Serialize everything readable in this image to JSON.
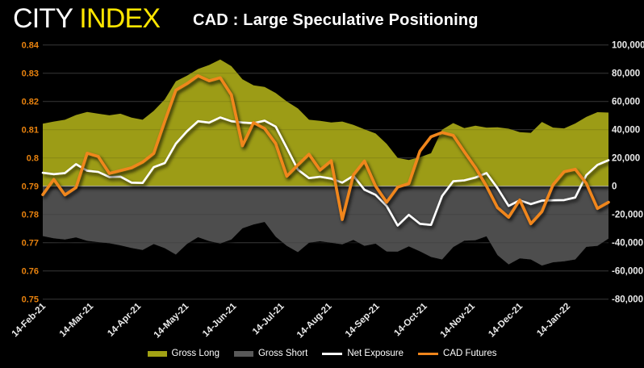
{
  "header": {
    "logo_primary": "CITY",
    "logo_secondary": "INDEX",
    "title": "CAD : Large Speculative Positioning"
  },
  "chart_data": {
    "type": "combo",
    "title": "CAD : Large Speculative Positioning",
    "x_tick_labels": [
      "14-Feb-21",
      "14-Mar-21",
      "14-Apr-21",
      "14-May-21",
      "14-Jun-21",
      "14-Jul-21",
      "14-Aug-21",
      "14-Sep-21",
      "14-Oct-21",
      "14-Nov-21",
      "14-Dec-21",
      "14-Jan-22"
    ],
    "left_axis": {
      "min": 0.75,
      "max": 0.84,
      "tick_labels": [
        "0.84",
        "0.83",
        "0.82",
        "0.81",
        "0.8",
        "0.79",
        "0.78",
        "0.77",
        "0.76",
        "0.75"
      ],
      "label_color": "#e8820e"
    },
    "right_axis": {
      "min": -80000,
      "max": 100000,
      "tick_labels": [
        "100,000",
        "80,000",
        "60,000",
        "40,000",
        "20,000",
        "0",
        "-20,000",
        "-40,000",
        "-60,000",
        "-80,000"
      ],
      "label_color": "#eaeaea"
    },
    "grid": true,
    "legend_position": "bottom",
    "series": [
      {
        "name": "Gross Long",
        "type": "area",
        "axis": "right",
        "color": "#9c9c13",
        "values": [
          44300,
          45800,
          47000,
          50400,
          52500,
          51300,
          50200,
          51300,
          48500,
          47000,
          53300,
          61500,
          74300,
          78300,
          83000,
          85800,
          89700,
          85000,
          75700,
          71400,
          70300,
          66000,
          60000,
          55000,
          47000,
          46300,
          45100,
          45800,
          43400,
          40300,
          37300,
          30000,
          20000,
          18500,
          20500,
          23300,
          40000,
          44700,
          41100,
          42800,
          41500,
          41700,
          40700,
          38300,
          37800,
          45500,
          41500,
          40900,
          44400,
          49000,
          52400,
          52100
        ]
      },
      {
        "name": "Gross Short",
        "type": "area",
        "axis": "right",
        "color": "#4d4d4d",
        "values": [
          -35300,
          -36900,
          -37700,
          -36200,
          -38700,
          -39600,
          -40400,
          -41900,
          -43700,
          -45200,
          -41000,
          -43900,
          -48400,
          -40900,
          -36100,
          -38900,
          -40600,
          -37800,
          -29800,
          -27100,
          -25300,
          -35700,
          -42200,
          -46700,
          -40000,
          -39000,
          -40000,
          -41200,
          -38000,
          -42200,
          -40700,
          -46200,
          -46300,
          -42600,
          -46100,
          -50100,
          -51900,
          -43100,
          -38600,
          -38200,
          -35500,
          -48800,
          -55400,
          -51100,
          -51900,
          -56200,
          -53900,
          -53200,
          -51900,
          -43000,
          -42200,
          -37100
        ]
      },
      {
        "name": "Net Exposure",
        "type": "line",
        "axis": "right",
        "color": "#ffffff",
        "width": 2.6,
        "values": [
          9500,
          8500,
          9300,
          15600,
          10900,
          10100,
          6500,
          6800,
          2500,
          2300,
          13500,
          16400,
          30100,
          38900,
          46000,
          45000,
          48700,
          46000,
          45100,
          44600,
          46400,
          42200,
          27000,
          11700,
          5700,
          6700,
          5400,
          2500,
          7400,
          -2500,
          -6100,
          -14000,
          -27900,
          -20300,
          -26600,
          -27400,
          -7000,
          3500,
          4100,
          6100,
          9300,
          -1400,
          -14000,
          -10000,
          -12700,
          -10200,
          -10000,
          -9800,
          -8000,
          7800,
          15100,
          18400
        ]
      },
      {
        "name": "CAD Futures",
        "type": "line",
        "axis": "left",
        "color": "#f0861c",
        "width": 3.6,
        "values": [
          0.787,
          0.7924,
          0.7869,
          0.7895,
          0.8017,
          0.8005,
          0.7945,
          0.7955,
          0.7965,
          0.7985,
          0.8016,
          0.813,
          0.824,
          0.8263,
          0.8291,
          0.8273,
          0.8284,
          0.8223,
          0.8043,
          0.8125,
          0.8104,
          0.8051,
          0.7935,
          0.7975,
          0.8013,
          0.7957,
          0.799,
          0.7782,
          0.794,
          0.7989,
          0.79,
          0.7843,
          0.7897,
          0.7909,
          0.8024,
          0.8075,
          0.809,
          0.808,
          0.8022,
          0.7966,
          0.79,
          0.7824,
          0.779,
          0.7851,
          0.7767,
          0.781,
          0.7905,
          0.7951,
          0.796,
          0.791,
          0.7821,
          0.7843
        ]
      }
    ]
  },
  "legend": {
    "items": [
      {
        "label": "Gross Long",
        "swatch": "area",
        "color": "#a2a214"
      },
      {
        "label": "Gross Short",
        "swatch": "area",
        "color": "#595959"
      },
      {
        "label": "Net Exposure",
        "swatch": "line",
        "color": "#ffffff"
      },
      {
        "label": "CAD Futures",
        "swatch": "line",
        "color": "#f0861c"
      }
    ]
  },
  "style": {
    "background": "#000000",
    "gridline_color": "#3e3e3e",
    "zero_line_color": "#ababab",
    "logo_primary_color": "#ffffff",
    "logo_secondary_color": "#ffe600",
    "x_label_color": "#eaeaea"
  }
}
